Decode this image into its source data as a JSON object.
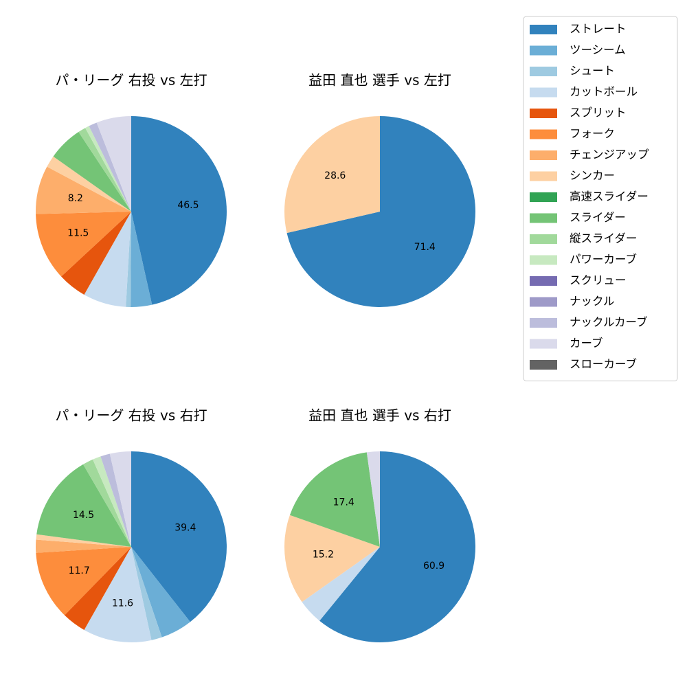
{
  "legend": {
    "entries": [
      {
        "label": "ストレート",
        "color": "#3182bd"
      },
      {
        "label": "ツーシーム",
        "color": "#6baed6"
      },
      {
        "label": "シュート",
        "color": "#9ecae1"
      },
      {
        "label": "カットボール",
        "color": "#c6dbef"
      },
      {
        "label": "スプリット",
        "color": "#e6550d"
      },
      {
        "label": "フォーク",
        "color": "#fd8d3c"
      },
      {
        "label": "チェンジアップ",
        "color": "#fdae6b"
      },
      {
        "label": "シンカー",
        "color": "#fdd0a2"
      },
      {
        "label": "高速スライダー",
        "color": "#31a354"
      },
      {
        "label": "スライダー",
        "color": "#74c476"
      },
      {
        "label": "縦スライダー",
        "color": "#a1d99b"
      },
      {
        "label": "パワーカーブ",
        "color": "#c7e9c0"
      },
      {
        "label": "スクリュー",
        "color": "#756bb1"
      },
      {
        "label": "ナックル",
        "color": "#9e9ac8"
      },
      {
        "label": "ナックルカーブ",
        "color": "#bcbddc"
      },
      {
        "label": "カーブ",
        "color": "#dadaeb"
      },
      {
        "label": "スローカーブ",
        "color": "#636363"
      }
    ]
  },
  "chart_data": [
    {
      "type": "pie",
      "title": "パ・リーグ 右投 vs 左打",
      "categories": [
        "ストレート",
        "ツーシーム",
        "シュート",
        "カットボール",
        "スプリット",
        "フォーク",
        "チェンジアップ",
        "シンカー",
        "スライダー",
        "縦スライダー",
        "パワーカーブ",
        "ナックルカーブ",
        "カーブ"
      ],
      "values": [
        46.5,
        3.6,
        0.8,
        7.3,
        4.9,
        11.5,
        8.2,
        2.0,
        5.9,
        1.3,
        0.7,
        1.4,
        5.9
      ],
      "labels": [
        "46.5",
        "",
        "",
        "",
        "",
        "11.5",
        "8.2",
        "",
        "",
        "",
        "",
        "",
        ""
      ]
    },
    {
      "type": "pie",
      "title": "益田 直也 選手 vs 左打",
      "categories": [
        "ストレート",
        "シンカー"
      ],
      "values": [
        71.4,
        28.6
      ],
      "labels": [
        "71.4",
        "28.6"
      ]
    },
    {
      "type": "pie",
      "title": "パ・リーグ 右投 vs 右打",
      "categories": [
        "ストレート",
        "ツーシーム",
        "シュート",
        "カットボール",
        "スプリット",
        "フォーク",
        "チェンジアップ",
        "シンカー",
        "スライダー",
        "縦スライダー",
        "パワーカーブ",
        "ナックルカーブ",
        "カーブ"
      ],
      "values": [
        39.4,
        5.4,
        1.8,
        11.6,
        4.1,
        11.7,
        2.2,
        0.9,
        14.5,
        1.8,
        1.4,
        1.6,
        3.6
      ],
      "labels": [
        "39.4",
        "",
        "",
        "11.6",
        "",
        "11.7",
        "",
        "",
        "14.5",
        "",
        "",
        "",
        ""
      ]
    },
    {
      "type": "pie",
      "title": "益田 直也 選手 vs 右打",
      "categories": [
        "ストレート",
        "カットボール",
        "シンカー",
        "スライダー",
        "カーブ"
      ],
      "values": [
        60.9,
        4.3,
        15.2,
        17.4,
        2.2
      ],
      "labels": [
        "60.9",
        "",
        "15.2",
        "17.4",
        ""
      ]
    }
  ]
}
